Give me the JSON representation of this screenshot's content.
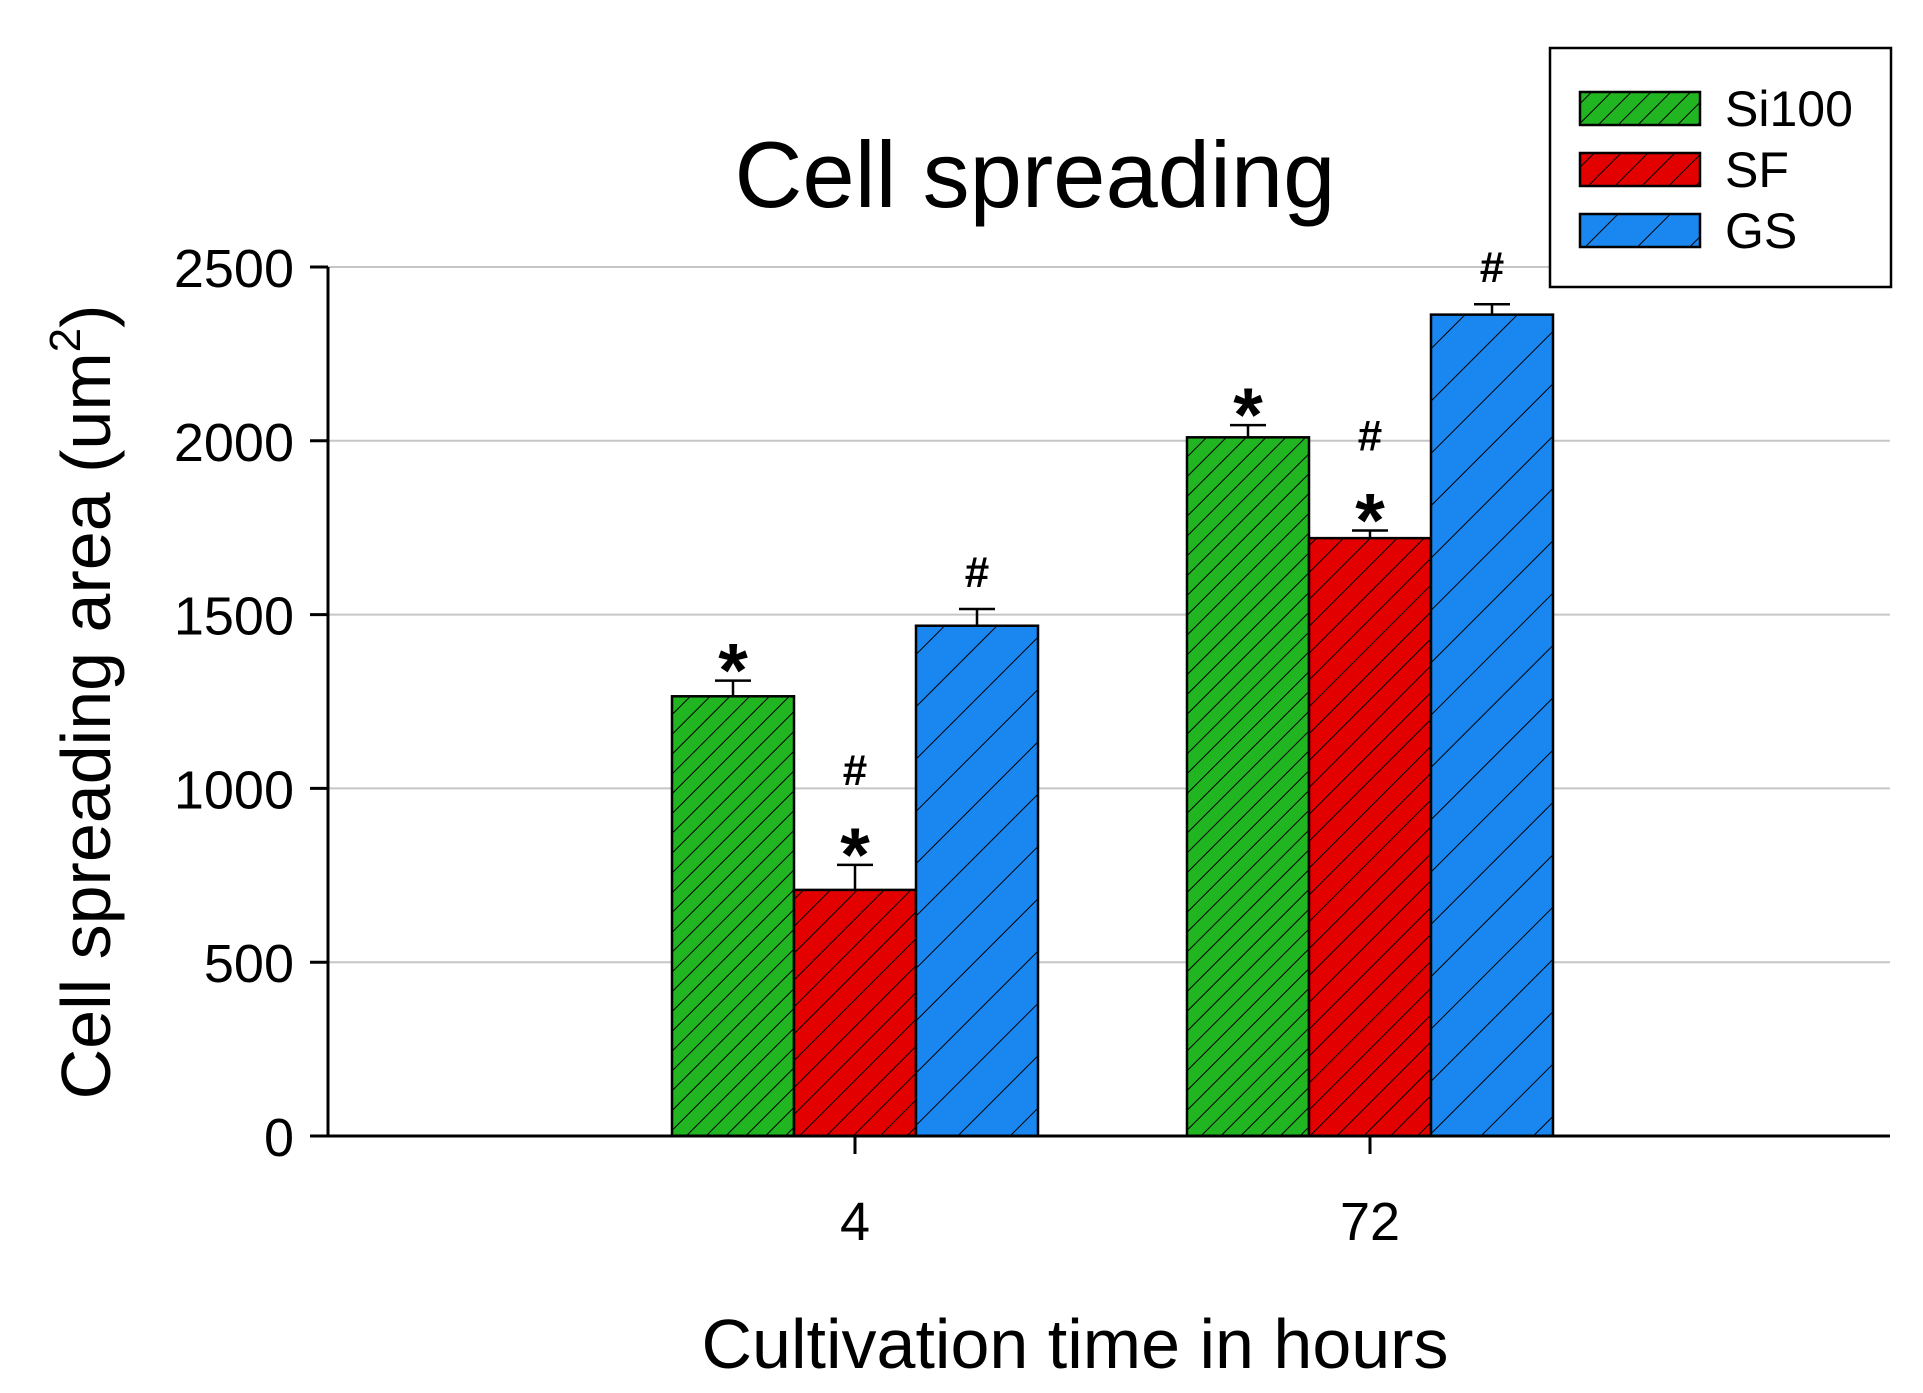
{
  "chart_data": {
    "type": "bar",
    "title": "Cell spreading",
    "xlabel": "Cultivation time in hours",
    "ylabel_main": "Cell spreading area (um",
    "ylabel_sup": "2",
    "ylabel_close": ")",
    "categories": [
      "4",
      "72"
    ],
    "ylim": [
      0,
      2500
    ],
    "yticks": [
      0,
      500,
      1000,
      1500,
      2000,
      2500
    ],
    "grid": true,
    "legend_position": "top-right",
    "series": [
      {
        "name": "Si100",
        "color": "#22b522",
        "hatch": "dense",
        "values": [
          1265,
          2010
        ],
        "errors": [
          45,
          35
        ],
        "annotations": [
          [
            "*"
          ],
          [
            "*"
          ]
        ]
      },
      {
        "name": "SF",
        "color": "#e30000",
        "hatch": "medium",
        "values": [
          708,
          1720
        ],
        "errors": [
          72,
          22
        ],
        "annotations": [
          [
            "#",
            "*"
          ],
          [
            "#",
            "*"
          ]
        ]
      },
      {
        "name": "GS",
        "color": "#1a86f0",
        "hatch": "sparse",
        "values": [
          1468,
          2363
        ],
        "errors": [
          48,
          30
        ],
        "annotations": [
          [
            "#"
          ],
          [
            "#"
          ]
        ]
      }
    ]
  }
}
